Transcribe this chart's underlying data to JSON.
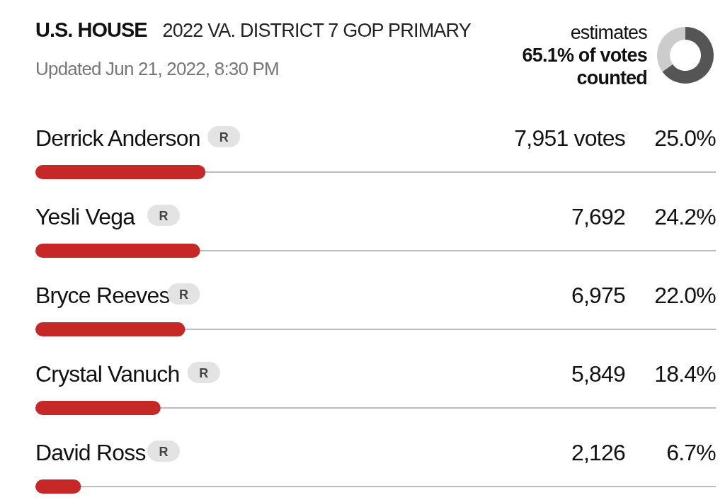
{
  "chart_data": [
    {
      "type": "bar",
      "orientation": "horizontal",
      "title": "U.S. HOUSE",
      "subtitle": "2022 VA. DISTRICT 7 GOP PRIMARY",
      "categories": [
        "Derrick Anderson",
        "Yesli Vega",
        "Bryce Reeves",
        "Crystal Vanuch",
        "David Ross"
      ],
      "values": [
        25.0,
        24.2,
        22.0,
        18.4,
        6.7
      ],
      "value_labels": [
        "25.0%",
        "24.2%",
        "22.0%",
        "18.4%",
        "6.7%"
      ],
      "color": "#c62828",
      "xlim": [
        0,
        100
      ],
      "annotations": [
        "Updated Jun 21, 2022, 8:30 PM",
        "7,951 votes",
        "7,692",
        "6,975",
        "5,849",
        "2,126",
        "R",
        "R",
        "R",
        "R",
        "R"
      ]
    },
    {
      "type": "donut",
      "categories": [
        null,
        null
      ],
      "values": [
        65.1,
        34.9
      ],
      "colors": [
        "#555555",
        "#cccccc"
      ],
      "annotations": [
        "estimates",
        "65.1% of votes counted"
      ]
    }
  ]
}
